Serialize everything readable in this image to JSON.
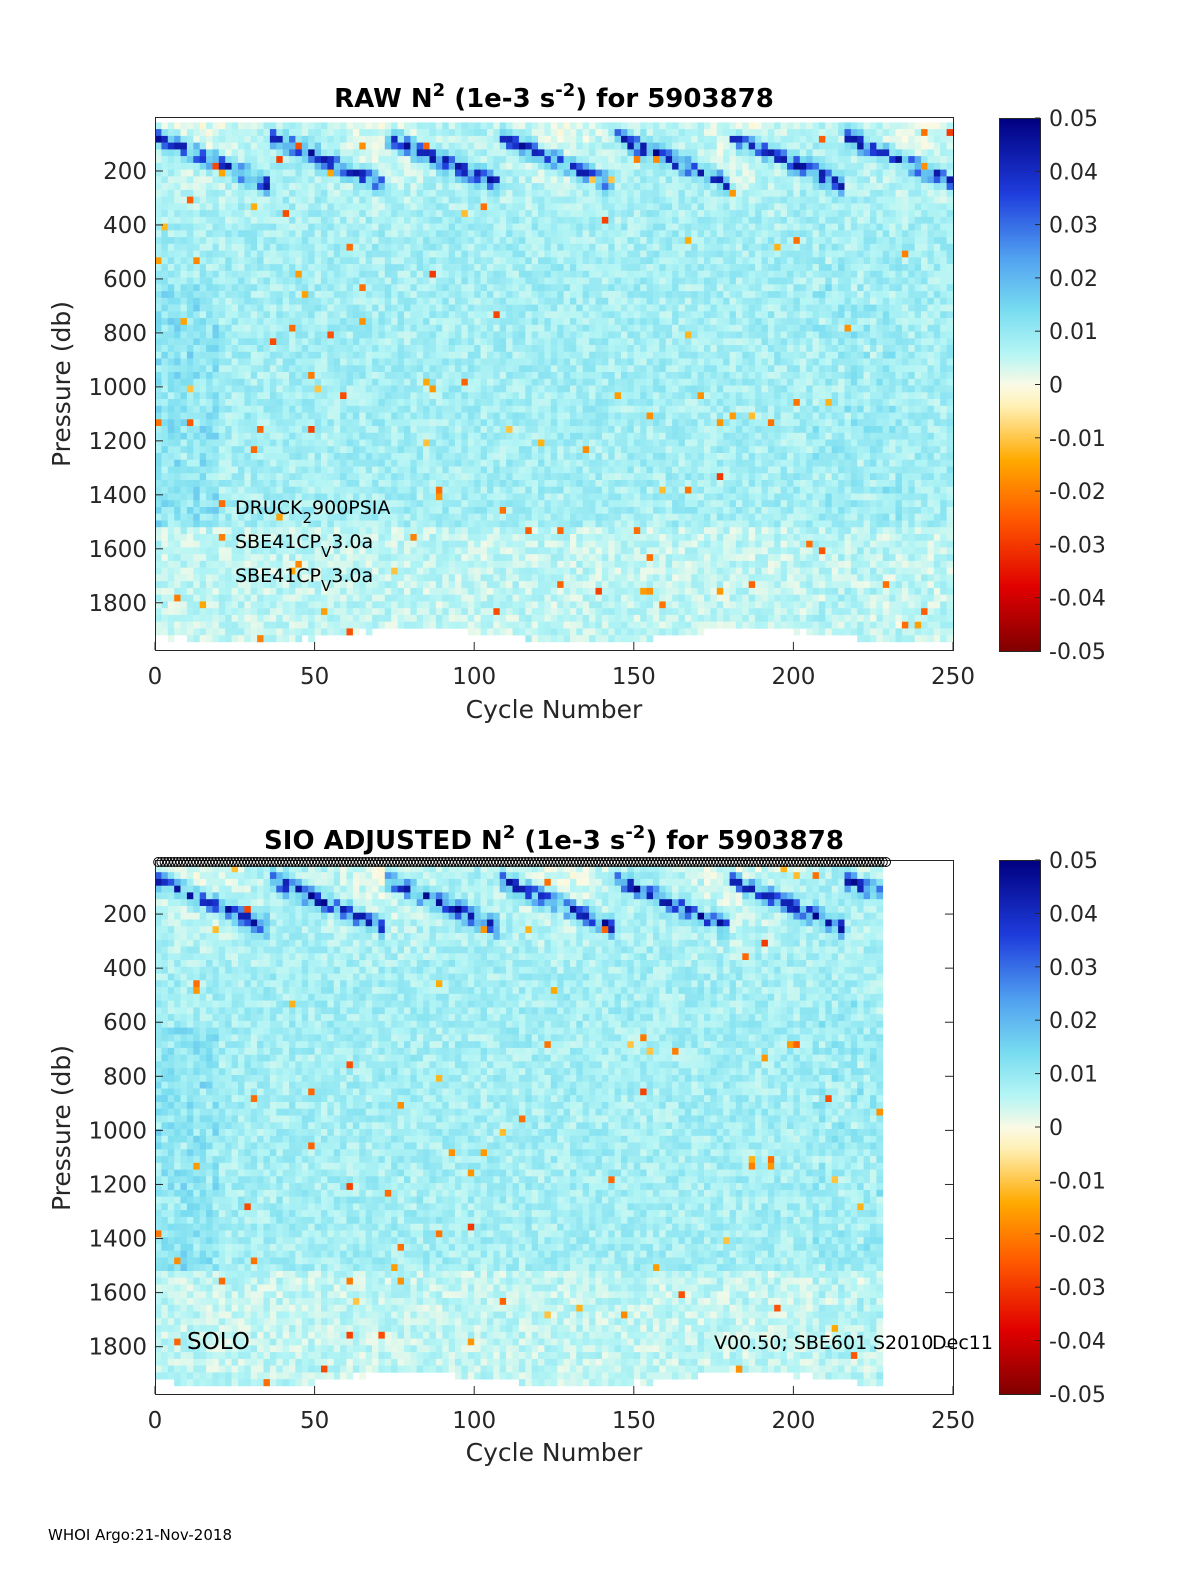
{
  "chart_data": [
    {
      "type": "heatmap",
      "title": {
        "prefix": "RAW N",
        "sup1": "2",
        "mid": " (1e-3 s",
        "sup2": "-2",
        "suffix": ") for 5903878"
      },
      "xlabel": "Cycle Number",
      "ylabel": "Pressure (db)",
      "xlim": [
        0,
        250
      ],
      "ylim": [
        1975,
        0
      ],
      "xticks": [
        0,
        50,
        100,
        150,
        200,
        250
      ],
      "yticks": [
        200,
        400,
        600,
        800,
        1000,
        1200,
        1400,
        1600,
        1800
      ],
      "colorbar": {
        "range": [
          -0.05,
          0.05
        ],
        "ticks": [
          "0.05",
          "0.04",
          "0.03",
          "0.02",
          "0.01",
          "0",
          "-0.01",
          "-0.02",
          "-0.03",
          "-0.04",
          "-0.05"
        ]
      },
      "data_cycles": [
        1,
        249
      ],
      "annotations": [
        {
          "main": "DRUCK",
          "sub": "2",
          "rest": "900PSIA"
        },
        {
          "main": "SBE41CP",
          "sub": "V",
          "rest": "3.0a"
        },
        {
          "main": "SBE41CP",
          "sub": "V",
          "rest": "3.0a"
        }
      ]
    },
    {
      "type": "heatmap",
      "title": {
        "prefix": "SIO  ADJUSTED N",
        "sup1": "2",
        "mid": " (1e-3 s",
        "sup2": "-2",
        "suffix": ") for 5903878"
      },
      "xlabel": "Cycle Number",
      "ylabel": "Pressure (db)",
      "xlim": [
        0,
        250
      ],
      "ylim": [
        1975,
        0
      ],
      "xticks": [
        0,
        50,
        100,
        150,
        200,
        250
      ],
      "yticks": [
        200,
        400,
        600,
        800,
        1000,
        1200,
        1400,
        1600,
        1800
      ],
      "colorbar": {
        "range": [
          -0.05,
          0.05
        ],
        "ticks": [
          "0.05",
          "0.04",
          "0.03",
          "0.02",
          "0.01",
          "0",
          "-0.01",
          "-0.02",
          "-0.03",
          "-0.04",
          "-0.05"
        ]
      },
      "data_cycles": [
        1,
        228
      ],
      "markers_cycles": [
        1,
        229
      ],
      "annotations": [
        {
          "text": "SOLO"
        },
        {
          "text": "V00.50; SBE601"
        },
        {
          "text": "S2010"
        },
        {
          "text": "Dec11"
        }
      ]
    }
  ],
  "footer": "WHOI Argo:21-Nov-2018"
}
